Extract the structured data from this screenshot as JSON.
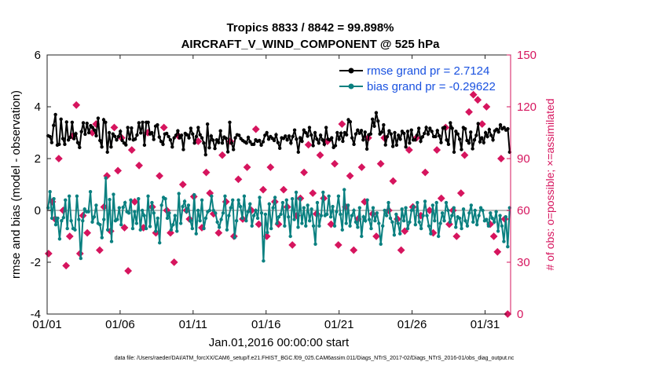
{
  "chart_data": {
    "type": "line",
    "title": "Tropics 8833 / 8842 = 99.898%",
    "subtitle": "AIRCRAFT_V_WIND_COMPONENT @ 525 hPa",
    "xlabel": "Jan.01,2016 00:00:00 start",
    "ylabel": "rmse and bias (model - observation)",
    "y2label": "# of obs: o=possible; ×=assimilated",
    "footnote": "data file: /Users/raeder/DAI/ATM_forcXX/CAM6_setup/f.e21.FHIST_BGC.f09_025.CAM6assim.011/Diags_NTrS_2017-02/Diags_NTrS_2016-01/obs_diag_output.nc",
    "x_range": [
      0,
      31.75
    ],
    "ylim": [
      -4,
      6
    ],
    "y2lim": [
      0,
      150
    ],
    "x_ticks": [
      {
        "value": 0,
        "label": "01/01"
      },
      {
        "value": 5,
        "label": "01/06"
      },
      {
        "value": 10,
        "label": "01/11"
      },
      {
        "value": 15,
        "label": "01/16"
      },
      {
        "value": 20,
        "label": "01/21"
      },
      {
        "value": 25,
        "label": "01/26"
      },
      {
        "value": 30,
        "label": "01/31"
      }
    ],
    "y_ticks": [
      {
        "value": -4,
        "label": "-4"
      },
      {
        "value": -2,
        "label": "-2"
      },
      {
        "value": 0,
        "label": "0"
      },
      {
        "value": 2,
        "label": "2"
      },
      {
        "value": 4,
        "label": "4"
      },
      {
        "value": 6,
        "label": "6"
      }
    ],
    "y2_ticks": [
      {
        "value": 0,
        "label": "0"
      },
      {
        "value": 30,
        "label": "30"
      },
      {
        "value": 60,
        "label": "60"
      },
      {
        "value": 90,
        "label": "90"
      },
      {
        "value": 120,
        "label": "120"
      },
      {
        "value": 150,
        "label": "150"
      }
    ],
    "legend_position": "top-right",
    "zero_line": 0,
    "series": [
      {
        "name": "rmse grand pr = 2.7124",
        "color": "#000000",
        "values": [
          2.88,
          2.85,
          2.62,
          3.28,
          3.7,
          2.52,
          2.55,
          3.52,
          2.77,
          2.55,
          3.41,
          2.72,
          2.82,
          3.4,
          2.77,
          2.96,
          2.62,
          2.43,
          3.04,
          3.38,
          2.94,
          3.36,
          3.0,
          3.27,
          3.2,
          3.1,
          2.88,
          3.56,
          2.7,
          2.45,
          3.5,
          3.4,
          2.25,
          3.0,
          2.45,
          2.95,
          2.86,
          2.72,
          2.85,
          3.05,
          2.7,
          2.6,
          2.53,
          3.2,
          2.76,
          3.18,
          2.72,
          2.75,
          2.91,
          3.38,
          2.99,
          3.4,
          2.52,
          3.4,
          3.4,
          2.95,
          3.0,
          2.74,
          3.25,
          3.3,
          2.83,
          2.66,
          2.55,
          2.95,
          2.97,
          2.85,
          2.72,
          2.45,
          2.8,
          2.9,
          3.07,
          2.8,
          2.9,
          2.35,
          2.97,
          2.92,
          2.8,
          3.17,
          2.95,
          2.6,
          2.85,
          3.2,
          2.92,
          2.8,
          2.6,
          2.15,
          3.33,
          2.42,
          2.87,
          2.71,
          2.39,
          2.72,
          2.62,
          3.07,
          2.6,
          2.83,
          2.78,
          2.26,
          3.4,
          2.6,
          2.35,
          2.8,
          2.92,
          2.9,
          2.77,
          2.7,
          2.65,
          2.6,
          2.82,
          2.65,
          2.55,
          2.55,
          2.72,
          2.67,
          2.7,
          2.52,
          2.65,
          2.9,
          3.0,
          2.75,
          2.85,
          2.78,
          2.7,
          2.92,
          2.62,
          2.4,
          2.8,
          2.78,
          2.87,
          2.72,
          2.87,
          2.6,
          2.85,
          3.1,
          2.75,
          2.25,
          2.8,
          2.67,
          3.1,
          3.0,
          2.87,
          3.2,
          2.91,
          2.5,
          3.0,
          2.75,
          2.6,
          2.9,
          2.72,
          2.55,
          3.2,
          2.75,
          2.72,
          2.8,
          2.43,
          2.5,
          3.0,
          2.75,
          2.98,
          2.67,
          3.0,
          2.92,
          3.5,
          3.42,
          2.8,
          2.55,
          2.95,
          3.1,
          2.98,
          3.08,
          2.72,
          3.02,
          2.37,
          2.92,
          2.95,
          3.52,
          3.25,
          3.77,
          3.45,
          2.95,
          3.02,
          3.3,
          2.53,
          2.85,
          3.07,
          2.95,
          2.47,
          3.0,
          2.52,
          2.9,
          2.75,
          3.05,
          2.97,
          2.45,
          3.05,
          2.6,
          3.1,
          2.72,
          2.72,
          2.9,
          3.17,
          2.67,
          2.84,
          2.97,
          3.2,
          2.95,
          3.17,
          3.05,
          2.85,
          2.85,
          3.08,
          2.88,
          2.62,
          3.18,
          3.21,
          2.72,
          2.55,
          3.38,
          3.17,
          2.25,
          3.05,
          2.95,
          2.75,
          2.35,
          3.2,
          3.15,
          2.7,
          2.6,
          3.02,
          2.38,
          2.72,
          2.9,
          3.35,
          2.65,
          2.8,
          2.62,
          3.0,
          2.85,
          3.12,
          2.9,
          2.72,
          3.07,
          3.13,
          3.03,
          3.3,
          3.15,
          3.2,
          3.1,
          3.15,
          2.25
        ]
      },
      {
        "name": "bias grand pr = -0.29622",
        "color": "#0a8080",
        "values": [
          0.1,
          0.72,
          -0.3,
          0.45,
          -0.55,
          -0.3,
          -1.1,
          -0.4,
          -0.28,
          0.4,
          -0.7,
          0.55,
          -0.4,
          -0.7,
          -0.75,
          0.55,
          -0.35,
          -1.85,
          -0.4,
          0.05,
          -0.05,
          -0.05,
          0.72,
          -0.45,
          -0.25,
          0.2,
          -0.5,
          -0.55,
          -1.05,
          -0.35,
          1.25,
          -0.75,
          0.42,
          -1.2,
          0.62,
          -0.4,
          -0.35,
          0.1,
          -0.55,
          0.12,
          0.3,
          -0.05,
          -0.1,
          0.4,
          -0.7,
          -0.05,
          -0.5,
          0.45,
          -0.75,
          0.0,
          -0.2,
          -0.7,
          0.55,
          -0.62,
          0.3,
          -0.1,
          -0.8,
          -0.3,
          -1.25,
          0.2,
          0.5,
          0.45,
          -0.3,
          -0.1,
          -0.75,
          -0.55,
          -0.2,
          -0.8,
          0.65,
          -0.5,
          0.15,
          0.35,
          -0.05,
          0.2,
          -0.4,
          -0.7,
          0.6,
          -0.9,
          0.0,
          -0.4,
          0.4,
          -0.7,
          -0.3,
          -0.05,
          0.0,
          0.55,
          0.0,
          -0.1,
          -0.45,
          -0.65,
          -0.35,
          -0.1,
          0.55,
          -0.75,
          -0.2,
          0.1,
          0.4,
          -1.05,
          -0.4,
          0.4,
          0.15,
          -0.3,
          0.55,
          -0.4,
          -0.05,
          0.25,
          -0.6,
          -0.2,
          0.0,
          -0.3,
          0.5,
          -0.1,
          -1.95,
          -0.15,
          -0.85,
          0.25,
          -0.7,
          0.1,
          0.5,
          -0.5,
          -0.25,
          -0.15,
          0.3,
          -0.6,
          0.4,
          -0.25,
          -1.0,
          0.45,
          -0.35,
          0.7,
          -0.65,
          0.45,
          -0.5,
          0.1,
          -0.6,
          0.2,
          -0.4,
          0.05,
          -0.6,
          -1.3,
          0.3,
          -0.6,
          -0.2,
          0.7,
          -0.2,
          -0.15,
          0.55,
          -0.25,
          0.15,
          -0.6,
          -0.05,
          0.55,
          -0.15,
          -0.75,
          0.8,
          -0.5,
          0.2,
          -0.6,
          -0.2,
          0.0,
          -0.45,
          -0.65,
          0.1,
          -1.0,
          -0.25,
          -0.4,
          0.4,
          -0.35,
          -0.7,
          0.1,
          -0.4,
          -0.1,
          -0.5,
          -1.3,
          -0.6,
          0.0,
          -0.2,
          0.3,
          -0.3,
          -0.45,
          -0.95,
          -0.15,
          -0.5,
          -0.9,
          0.05,
          -0.4,
          0.1,
          -0.7,
          -0.45,
          0.0,
          0.15,
          -0.55,
          0.3,
          -0.45,
          -0.7,
          -0.2,
          0.35,
          -0.2,
          -0.6,
          -0.9,
          0.2,
          -0.4,
          0.3,
          -1.0,
          -0.5,
          -0.1,
          -0.4,
          0.3,
          0.0,
          -0.45,
          -0.2,
          0.1,
          -0.65,
          -0.25,
          -0.3,
          -0.7,
          0.05,
          -0.4,
          -0.6,
          -0.1,
          0.2,
          -0.45,
          0.0,
          -0.55,
          -0.2,
          0.1,
          0.0,
          -0.4,
          -0.35,
          -0.6,
          -0.1,
          -0.3,
          -0.45,
          -0.05,
          -0.8,
          -0.2,
          -0.6,
          -1.2,
          -0.25,
          -1.4,
          0.1
        ]
      }
    ],
    "obs_assimilated": {
      "marker": "×",
      "color": "#d6155e",
      "points": [
        {
          "x": 0.1,
          "y": 35
        },
        {
          "x": 0.35,
          "y": 65
        },
        {
          "x": 0.55,
          "y": 55
        },
        {
          "x": 0.8,
          "y": 90
        },
        {
          "x": 1.1,
          "y": 60
        },
        {
          "x": 1.3,
          "y": 28
        },
        {
          "x": 1.55,
          "y": 45
        },
        {
          "x": 1.75,
          "y": 103
        },
        {
          "x": 2.0,
          "y": 121
        },
        {
          "x": 2.25,
          "y": 35
        },
        {
          "x": 2.45,
          "y": 57
        },
        {
          "x": 2.75,
          "y": 47
        },
        {
          "x": 3.1,
          "y": 105
        },
        {
          "x": 3.35,
          "y": 110
        },
        {
          "x": 3.6,
          "y": 37
        },
        {
          "x": 3.9,
          "y": 62
        },
        {
          "x": 4.1,
          "y": 80
        },
        {
          "x": 4.35,
          "y": 48
        },
        {
          "x": 4.6,
          "y": 108
        },
        {
          "x": 4.85,
          "y": 83
        },
        {
          "x": 5.1,
          "y": 102
        },
        {
          "x": 5.3,
          "y": 50
        },
        {
          "x": 5.55,
          "y": 25
        },
        {
          "x": 5.8,
          "y": 95
        },
        {
          "x": 6.0,
          "y": 65
        },
        {
          "x": 6.3,
          "y": 86
        },
        {
          "x": 6.6,
          "y": 50
        },
        {
          "x": 6.9,
          "y": 105
        },
        {
          "x": 7.2,
          "y": 62
        },
        {
          "x": 7.45,
          "y": 47
        },
        {
          "x": 7.7,
          "y": 80
        },
        {
          "x": 8.0,
          "y": 108
        },
        {
          "x": 8.2,
          "y": 60
        },
        {
          "x": 8.45,
          "y": 47
        },
        {
          "x": 8.7,
          "y": 30
        },
        {
          "x": 9.0,
          "y": 103
        },
        {
          "x": 9.3,
          "y": 75
        },
        {
          "x": 9.55,
          "y": 60
        },
        {
          "x": 9.75,
          "y": 55
        },
        {
          "x": 10.05,
          "y": 68
        },
        {
          "x": 10.35,
          "y": 100
        },
        {
          "x": 10.6,
          "y": 50
        },
        {
          "x": 10.9,
          "y": 82
        },
        {
          "x": 11.15,
          "y": 70
        },
        {
          "x": 11.4,
          "y": 58
        },
        {
          "x": 11.75,
          "y": 47
        },
        {
          "x": 12.0,
          "y": 92
        },
        {
          "x": 12.25,
          "y": 65
        },
        {
          "x": 12.55,
          "y": 100
        },
        {
          "x": 12.8,
          "y": 45
        },
        {
          "x": 13.1,
          "y": 78
        },
        {
          "x": 13.4,
          "y": 55
        },
        {
          "x": 13.7,
          "y": 85
        },
        {
          "x": 14.0,
          "y": 60
        },
        {
          "x": 14.3,
          "y": 107
        },
        {
          "x": 14.5,
          "y": 52
        },
        {
          "x": 14.8,
          "y": 72
        },
        {
          "x": 15.05,
          "y": 45
        },
        {
          "x": 15.3,
          "y": 85
        },
        {
          "x": 15.6,
          "y": 65
        },
        {
          "x": 15.85,
          "y": 52
        },
        {
          "x": 16.2,
          "y": 72
        },
        {
          "x": 16.45,
          "y": 62
        },
        {
          "x": 16.8,
          "y": 40
        },
        {
          "x": 17.1,
          "y": 57
        },
        {
          "x": 17.35,
          "y": 67
        },
        {
          "x": 17.6,
          "y": 82
        },
        {
          "x": 17.9,
          "y": 98
        },
        {
          "x": 18.2,
          "y": 70
        },
        {
          "x": 18.45,
          "y": 58
        },
        {
          "x": 18.7,
          "y": 92
        },
        {
          "x": 18.95,
          "y": 67
        },
        {
          "x": 19.2,
          "y": 100
        },
        {
          "x": 19.45,
          "y": 52
        },
        {
          "x": 19.7,
          "y": 87
        },
        {
          "x": 19.95,
          "y": 40
        },
        {
          "x": 20.2,
          "y": 110
        },
        {
          "x": 20.45,
          "y": 62
        },
        {
          "x": 20.75,
          "y": 80
        },
        {
          "x": 21.0,
          "y": 37
        },
        {
          "x": 21.3,
          "y": 55
        },
        {
          "x": 21.55,
          "y": 85
        },
        {
          "x": 21.75,
          "y": 65
        },
        {
          "x": 22.0,
          "y": 102
        },
        {
          "x": 22.3,
          "y": 58
        },
        {
          "x": 22.55,
          "y": 45
        },
        {
          "x": 22.85,
          "y": 87
        },
        {
          "x": 23.1,
          "y": 102
        },
        {
          "x": 23.4,
          "y": 60
        },
        {
          "x": 23.7,
          "y": 77
        },
        {
          "x": 24.0,
          "y": 55
        },
        {
          "x": 24.25,
          "y": 37
        },
        {
          "x": 24.5,
          "y": 48
        },
        {
          "x": 24.8,
          "y": 95
        },
        {
          "x": 25.05,
          "y": 62
        },
        {
          "x": 25.3,
          "y": 102
        },
        {
          "x": 25.6,
          "y": 57
        },
        {
          "x": 25.9,
          "y": 82
        },
        {
          "x": 26.2,
          "y": 60
        },
        {
          "x": 26.45,
          "y": 47
        },
        {
          "x": 26.7,
          "y": 95
        },
        {
          "x": 27.0,
          "y": 67
        },
        {
          "x": 27.3,
          "y": 108
        },
        {
          "x": 27.55,
          "y": 52
        },
        {
          "x": 27.8,
          "y": 60
        },
        {
          "x": 28.05,
          "y": 45
        },
        {
          "x": 28.35,
          "y": 70
        },
        {
          "x": 28.6,
          "y": 92
        },
        {
          "x": 28.9,
          "y": 117
        },
        {
          "x": 29.2,
          "y": 127
        },
        {
          "x": 29.5,
          "y": 124
        },
        {
          "x": 29.8,
          "y": 110
        },
        {
          "x": 30.1,
          "y": 120
        },
        {
          "x": 30.35,
          "y": 52
        },
        {
          "x": 30.6,
          "y": 45
        },
        {
          "x": 30.85,
          "y": 36
        },
        {
          "x": 31.1,
          "y": 90
        },
        {
          "x": 31.35,
          "y": 55
        },
        {
          "x": 31.55,
          "y": 0
        }
      ]
    }
  }
}
